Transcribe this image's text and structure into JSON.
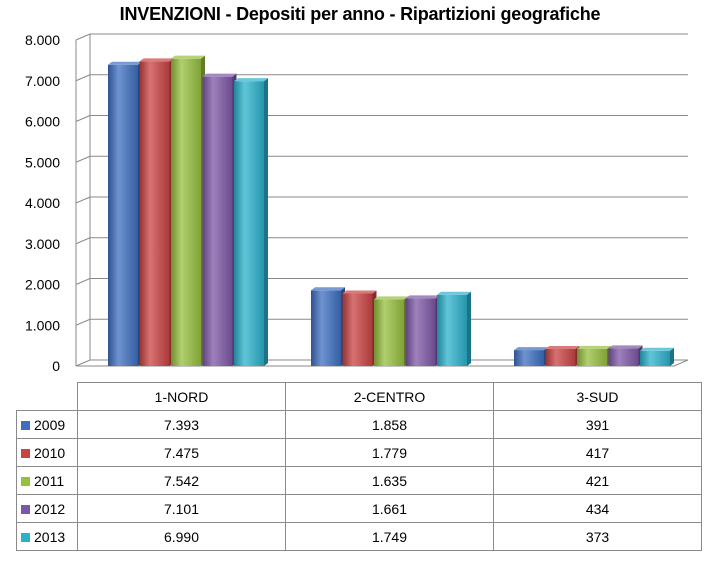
{
  "chart_data": {
    "type": "bar",
    "title": "INVENZIONI - Depositi per anno - Ripartizioni geografiche",
    "categories": [
      "1-NORD",
      "2-CENTRO",
      "3-SUD"
    ],
    "series": [
      {
        "name": "2009",
        "color": "#3d6fc0",
        "values": [
          7393,
          1858,
          391
        ],
        "labels": [
          "7.393",
          "1.858",
          "391"
        ]
      },
      {
        "name": "2010",
        "color": "#c94343",
        "values": [
          7475,
          1779,
          417
        ],
        "labels": [
          "7.475",
          "1.779",
          "417"
        ]
      },
      {
        "name": "2011",
        "color": "#96bf3e",
        "values": [
          7542,
          1635,
          421
        ],
        "labels": [
          "7.542",
          "1.635",
          "421"
        ]
      },
      {
        "name": "2012",
        "color": "#7d57a6",
        "values": [
          7101,
          1661,
          434
        ],
        "labels": [
          "7.101",
          "1.661",
          "434"
        ]
      },
      {
        "name": "2013",
        "color": "#2cb1cc",
        "values": [
          6990,
          1749,
          373
        ],
        "labels": [
          "6.990",
          "1.749",
          "373"
        ]
      }
    ],
    "y_ticks": [
      "0",
      "1.000",
      "2.000",
      "3.000",
      "4.000",
      "5.000",
      "6.000",
      "7.000",
      "8.000"
    ],
    "ylim": [
      0,
      8000
    ],
    "grid": true,
    "legend": "data table below chart"
  }
}
